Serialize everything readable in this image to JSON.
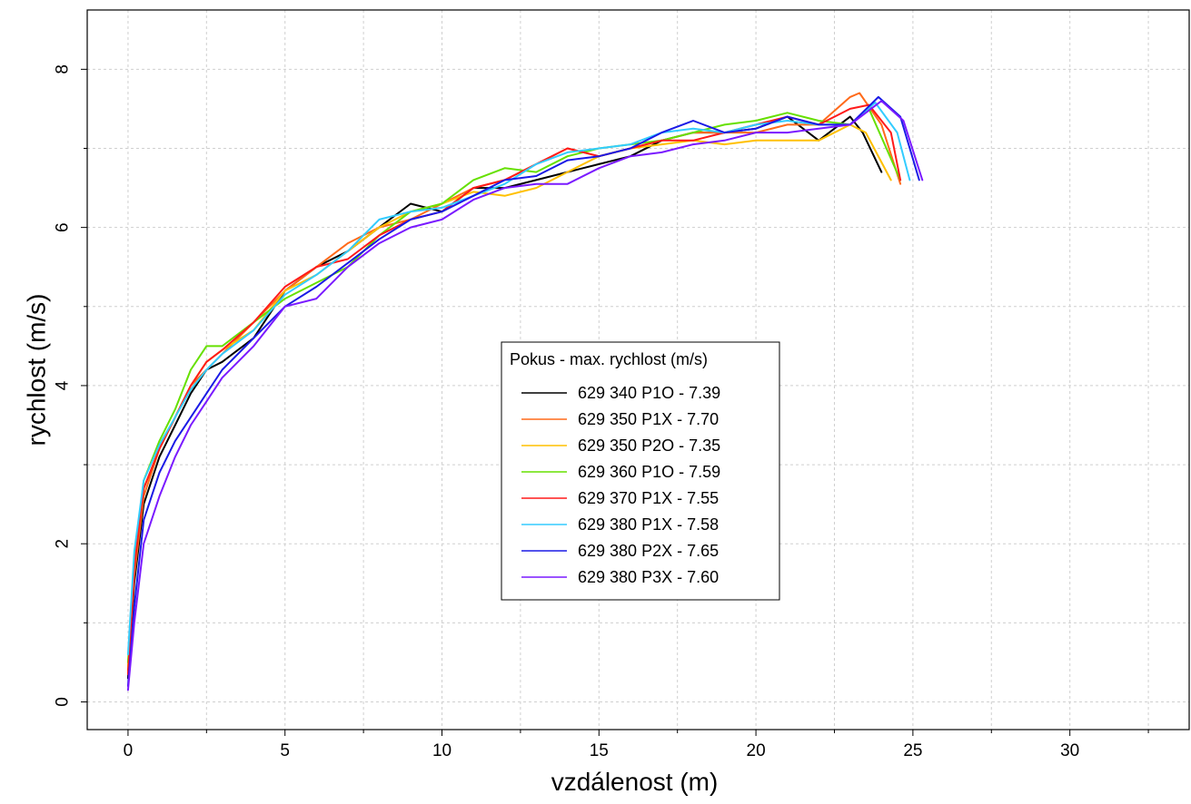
{
  "chart_data": {
    "type": "line",
    "title": "",
    "xlabel": "vzdálenost (m)",
    "ylabel": "rychlost (m/s)",
    "xlim": [
      -1.3,
      33.8
    ],
    "ylim": [
      -0.35,
      8.75
    ],
    "xticks": [
      0,
      5,
      10,
      15,
      20,
      25,
      30
    ],
    "yticks": [
      0,
      2,
      4,
      6,
      8
    ],
    "x_tick_labels": [
      "0",
      "5",
      "10",
      "15",
      "20",
      "25",
      "30"
    ],
    "y_tick_labels": [
      "0",
      "2",
      "4",
      "6",
      "8"
    ],
    "grid": true,
    "legend_title": "Pokus - max. rychlost (m/s)",
    "legend_position": "center",
    "series": [
      {
        "name": "629 340 P1O - 7.39",
        "color": "#000000",
        "points": [
          [
            0,
            0.3
          ],
          [
            0.2,
            1.5
          ],
          [
            0.5,
            2.5
          ],
          [
            1,
            3.1
          ],
          [
            1.5,
            3.5
          ],
          [
            2,
            3.9
          ],
          [
            2.5,
            4.2
          ],
          [
            3,
            4.3
          ],
          [
            4,
            4.6
          ],
          [
            5,
            5.2
          ],
          [
            6,
            5.5
          ],
          [
            7,
            5.7
          ],
          [
            8,
            6.0
          ],
          [
            9,
            6.3
          ],
          [
            10,
            6.2
          ],
          [
            11,
            6.5
          ],
          [
            12,
            6.5
          ],
          [
            13,
            6.6
          ],
          [
            14,
            6.7
          ],
          [
            15,
            6.8
          ],
          [
            16,
            6.9
          ],
          [
            17,
            7.1
          ],
          [
            18,
            7.2
          ],
          [
            19,
            7.2
          ],
          [
            20,
            7.25
          ],
          [
            21,
            7.4
          ],
          [
            22,
            7.1
          ],
          [
            23,
            7.4
          ],
          [
            23.4,
            7.2
          ],
          [
            24,
            6.7
          ]
        ]
      },
      {
        "name": "629 350 P1X - 7.70",
        "color": "#ff6a1a",
        "points": [
          [
            0,
            0.4
          ],
          [
            0.2,
            1.6
          ],
          [
            0.5,
            2.6
          ],
          [
            1,
            3.2
          ],
          [
            1.5,
            3.6
          ],
          [
            2,
            4.0
          ],
          [
            2.5,
            4.2
          ],
          [
            3,
            4.4
          ],
          [
            4,
            4.8
          ],
          [
            5,
            5.2
          ],
          [
            6,
            5.5
          ],
          [
            7,
            5.8
          ],
          [
            8,
            6.0
          ],
          [
            9,
            6.1
          ],
          [
            10,
            6.3
          ],
          [
            11,
            6.5
          ],
          [
            12,
            6.6
          ],
          [
            13,
            6.8
          ],
          [
            14,
            7.0
          ],
          [
            15,
            6.9
          ],
          [
            16,
            7.0
          ],
          [
            17,
            7.1
          ],
          [
            18,
            7.2
          ],
          [
            19,
            7.2
          ],
          [
            20,
            7.2
          ],
          [
            21,
            7.3
          ],
          [
            22,
            7.3
          ],
          [
            23,
            7.65
          ],
          [
            23.3,
            7.7
          ],
          [
            24,
            7.3
          ],
          [
            24.6,
            6.55
          ]
        ]
      },
      {
        "name": "629 350 P2O - 7.35",
        "color": "#ffc000",
        "points": [
          [
            0,
            0.45
          ],
          [
            0.2,
            1.7
          ],
          [
            0.5,
            2.7
          ],
          [
            1,
            3.2
          ],
          [
            1.5,
            3.6
          ],
          [
            2,
            4.0
          ],
          [
            2.5,
            4.3
          ],
          [
            3,
            4.45
          ],
          [
            4,
            4.7
          ],
          [
            5,
            5.2
          ],
          [
            6,
            5.4
          ],
          [
            7,
            5.7
          ],
          [
            8,
            6.0
          ],
          [
            9,
            6.2
          ],
          [
            10,
            6.3
          ],
          [
            11,
            6.45
          ],
          [
            12,
            6.4
          ],
          [
            13,
            6.5
          ],
          [
            14,
            6.7
          ],
          [
            15,
            6.9
          ],
          [
            16,
            7.0
          ],
          [
            17,
            7.05
          ],
          [
            18,
            7.1
          ],
          [
            19,
            7.05
          ],
          [
            20,
            7.1
          ],
          [
            21,
            7.1
          ],
          [
            22,
            7.1
          ],
          [
            23,
            7.3
          ],
          [
            23.5,
            7.2
          ],
          [
            24.3,
            6.6
          ]
        ]
      },
      {
        "name": "629 360 P1O - 7.59",
        "color": "#66e000",
        "points": [
          [
            0,
            0.5
          ],
          [
            0.2,
            1.8
          ],
          [
            0.5,
            2.8
          ],
          [
            1,
            3.3
          ],
          [
            1.5,
            3.7
          ],
          [
            2,
            4.2
          ],
          [
            2.5,
            4.5
          ],
          [
            3,
            4.5
          ],
          [
            4,
            4.8
          ],
          [
            5,
            5.1
          ],
          [
            6,
            5.3
          ],
          [
            7,
            5.5
          ],
          [
            8,
            5.9
          ],
          [
            9,
            6.2
          ],
          [
            10,
            6.3
          ],
          [
            11,
            6.6
          ],
          [
            12,
            6.75
          ],
          [
            13,
            6.7
          ],
          [
            14,
            6.9
          ],
          [
            15,
            7.0
          ],
          [
            16,
            7.05
          ],
          [
            17,
            7.1
          ],
          [
            18,
            7.2
          ],
          [
            19,
            7.3
          ],
          [
            20,
            7.35
          ],
          [
            21,
            7.45
          ],
          [
            22,
            7.35
          ],
          [
            23,
            7.3
          ],
          [
            23.6,
            7.5
          ],
          [
            24.6,
            6.6
          ]
        ]
      },
      {
        "name": "629 370 P1X - 7.55",
        "color": "#ff1a1a",
        "points": [
          [
            0,
            0.35
          ],
          [
            0.2,
            1.7
          ],
          [
            0.5,
            2.7
          ],
          [
            1,
            3.2
          ],
          [
            1.5,
            3.6
          ],
          [
            2,
            4.0
          ],
          [
            2.5,
            4.3
          ],
          [
            3,
            4.45
          ],
          [
            4,
            4.8
          ],
          [
            5,
            5.25
          ],
          [
            6,
            5.5
          ],
          [
            7,
            5.6
          ],
          [
            8,
            5.9
          ],
          [
            9,
            6.1
          ],
          [
            10,
            6.2
          ],
          [
            11,
            6.5
          ],
          [
            12,
            6.6
          ],
          [
            13,
            6.8
          ],
          [
            14,
            7.0
          ],
          [
            15,
            6.9
          ],
          [
            16,
            7.0
          ],
          [
            17,
            7.1
          ],
          [
            18,
            7.1
          ],
          [
            19,
            7.2
          ],
          [
            20,
            7.3
          ],
          [
            21,
            7.4
          ],
          [
            22,
            7.3
          ],
          [
            23,
            7.5
          ],
          [
            23.6,
            7.55
          ],
          [
            24.3,
            7.2
          ],
          [
            24.6,
            6.6
          ]
        ]
      },
      {
        "name": "629 380 P1X - 7.58",
        "color": "#33ccff",
        "points": [
          [
            0,
            0.6
          ],
          [
            0.2,
            1.9
          ],
          [
            0.5,
            2.8
          ],
          [
            1,
            3.25
          ],
          [
            1.5,
            3.6
          ],
          [
            2,
            3.95
          ],
          [
            2.5,
            4.2
          ],
          [
            3,
            4.4
          ],
          [
            4,
            4.7
          ],
          [
            5,
            5.15
          ],
          [
            6,
            5.4
          ],
          [
            7,
            5.7
          ],
          [
            8,
            6.1
          ],
          [
            9,
            6.2
          ],
          [
            10,
            6.25
          ],
          [
            11,
            6.4
          ],
          [
            12,
            6.55
          ],
          [
            13,
            6.8
          ],
          [
            14,
            6.95
          ],
          [
            15,
            7.0
          ],
          [
            16,
            7.05
          ],
          [
            17,
            7.2
          ],
          [
            18,
            7.25
          ],
          [
            19,
            7.2
          ],
          [
            20,
            7.3
          ],
          [
            21,
            7.35
          ],
          [
            22,
            7.3
          ],
          [
            23,
            7.3
          ],
          [
            23.8,
            7.58
          ],
          [
            24.5,
            7.2
          ],
          [
            24.9,
            6.6
          ]
        ]
      },
      {
        "name": "629 380 P2X - 7.65",
        "color": "#1a1ae6",
        "points": [
          [
            0,
            0.2
          ],
          [
            0.2,
            1.2
          ],
          [
            0.5,
            2.3
          ],
          [
            1,
            2.9
          ],
          [
            1.5,
            3.3
          ],
          [
            2,
            3.6
          ],
          [
            2.5,
            3.9
          ],
          [
            3,
            4.2
          ],
          [
            4,
            4.6
          ],
          [
            5,
            5.0
          ],
          [
            6,
            5.25
          ],
          [
            7,
            5.55
          ],
          [
            8,
            5.85
          ],
          [
            9,
            6.1
          ],
          [
            10,
            6.2
          ],
          [
            11,
            6.4
          ],
          [
            12,
            6.6
          ],
          [
            13,
            6.65
          ],
          [
            14,
            6.85
          ],
          [
            15,
            6.9
          ],
          [
            16,
            7.0
          ],
          [
            17,
            7.2
          ],
          [
            18,
            7.35
          ],
          [
            19,
            7.2
          ],
          [
            20,
            7.25
          ],
          [
            21,
            7.4
          ],
          [
            22,
            7.3
          ],
          [
            23,
            7.3
          ],
          [
            23.9,
            7.65
          ],
          [
            24.6,
            7.4
          ],
          [
            25.2,
            6.6
          ]
        ]
      },
      {
        "name": "629 380 P3X - 7.60",
        "color": "#7a1aff",
        "points": [
          [
            0,
            0.15
          ],
          [
            0.2,
            1.0
          ],
          [
            0.5,
            2.0
          ],
          [
            1,
            2.6
          ],
          [
            1.5,
            3.1
          ],
          [
            2,
            3.5
          ],
          [
            2.5,
            3.8
          ],
          [
            3,
            4.1
          ],
          [
            4,
            4.5
          ],
          [
            5,
            5.0
          ],
          [
            6,
            5.1
          ],
          [
            7,
            5.5
          ],
          [
            8,
            5.8
          ],
          [
            9,
            6.0
          ],
          [
            10,
            6.1
          ],
          [
            11,
            6.35
          ],
          [
            12,
            6.5
          ],
          [
            13,
            6.55
          ],
          [
            14,
            6.55
          ],
          [
            15,
            6.75
          ],
          [
            16,
            6.9
          ],
          [
            17,
            6.95
          ],
          [
            18,
            7.05
          ],
          [
            19,
            7.1
          ],
          [
            20,
            7.2
          ],
          [
            21,
            7.2
          ],
          [
            22,
            7.25
          ],
          [
            23,
            7.3
          ],
          [
            24,
            7.6
          ],
          [
            24.7,
            7.35
          ],
          [
            25.3,
            6.6
          ]
        ]
      }
    ]
  }
}
